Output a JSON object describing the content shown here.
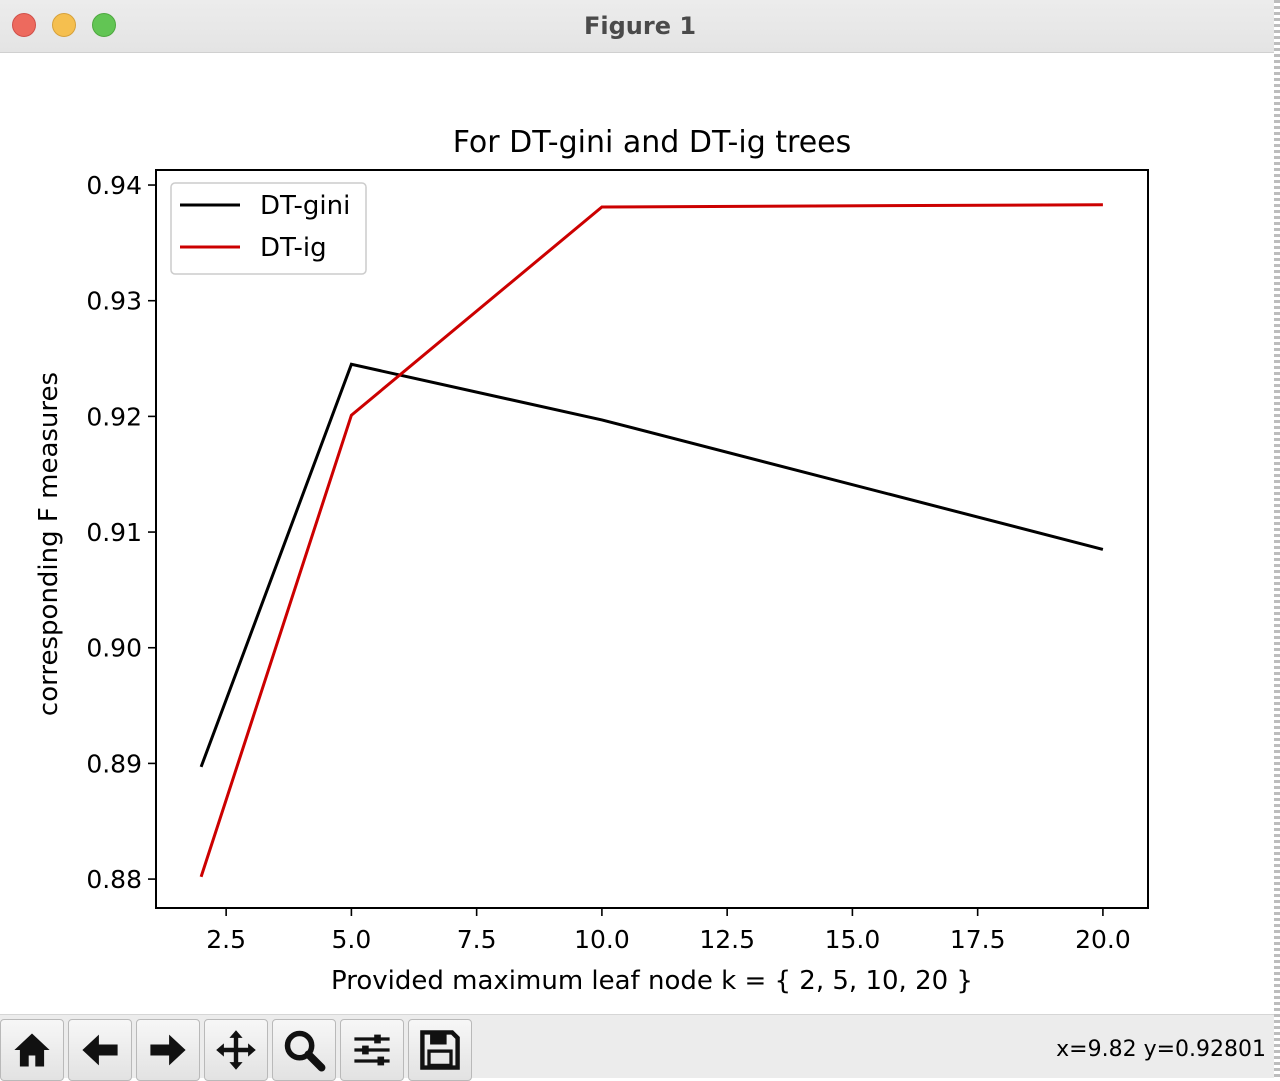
{
  "window": {
    "title": "Figure 1"
  },
  "toolbar": {
    "buttons": [
      {
        "icon": "home-icon"
      },
      {
        "icon": "back-arrow-icon"
      },
      {
        "icon": "forward-arrow-icon"
      },
      {
        "icon": "pan-icon"
      },
      {
        "icon": "zoom-icon"
      },
      {
        "icon": "configure-subplots-icon"
      },
      {
        "icon": "save-icon"
      }
    ],
    "coords_text": "x=9.82 y=0.92801"
  },
  "chart_data": {
    "type": "line",
    "title": "For DT-gini and DT-ig trees",
    "xlabel": "Provided maximum leaf node k = { 2, 5, 10, 20 }",
    "ylabel": "corresponding F measures",
    "x": [
      2,
      5,
      10,
      20
    ],
    "xlim": [
      1.1,
      20.9
    ],
    "ylim": [
      0.8775,
      0.9413
    ],
    "xticks": [
      2.5,
      5.0,
      7.5,
      10.0,
      12.5,
      15.0,
      17.5,
      20.0
    ],
    "xtick_labels": [
      "2.5",
      "5.0",
      "7.5",
      "10.0",
      "12.5",
      "15.0",
      "17.5",
      "20.0"
    ],
    "yticks": [
      0.88,
      0.89,
      0.9,
      0.91,
      0.92,
      0.93,
      0.94
    ],
    "ytick_labels": [
      "0.88",
      "0.89",
      "0.90",
      "0.91",
      "0.92",
      "0.93",
      "0.94"
    ],
    "grid": false,
    "legend_position": "top-left",
    "series": [
      {
        "name": "DT-gini",
        "color": "#000000",
        "values": [
          0.8897,
          0.9245,
          0.9197,
          0.9085
        ]
      },
      {
        "name": "DT-ig",
        "color": "#cc0000",
        "values": [
          0.8802,
          0.9201,
          0.9381,
          0.9383
        ]
      }
    ]
  }
}
